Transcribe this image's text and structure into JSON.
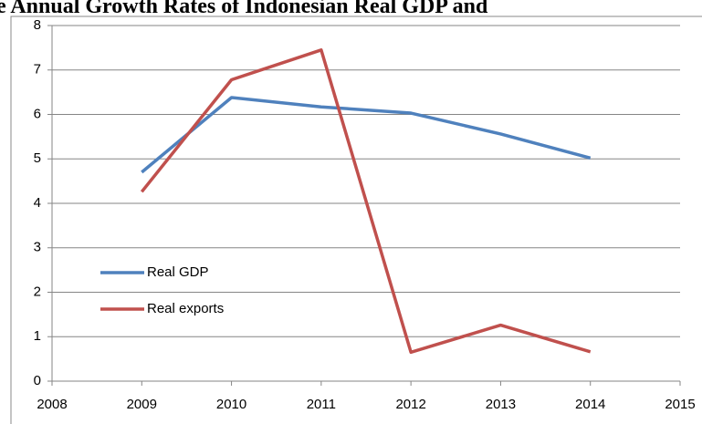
{
  "chart_data": {
    "type": "line",
    "title": "e Annual Growth Rates of Indonesian Real GDP and",
    "x": [
      2009,
      2010,
      2011,
      2012,
      2013,
      2014
    ],
    "series": [
      {
        "name": "Real GDP",
        "color": "#4f81bd",
        "values": [
          4.7,
          6.38,
          6.17,
          6.03,
          5.56,
          5.02
        ]
      },
      {
        "name": "Real exports",
        "color": "#c0504d",
        "values": [
          4.26,
          6.78,
          7.45,
          0.65,
          1.26,
          0.66
        ]
      }
    ],
    "xlim": [
      2008,
      2015
    ],
    "xticks": [
      2008,
      2009,
      2010,
      2011,
      2012,
      2013,
      2014,
      2015
    ],
    "ylim": [
      0,
      8
    ],
    "yticks": [
      0,
      1,
      2,
      3,
      4,
      5,
      6,
      7,
      8
    ],
    "grid": true,
    "legend": "left"
  }
}
